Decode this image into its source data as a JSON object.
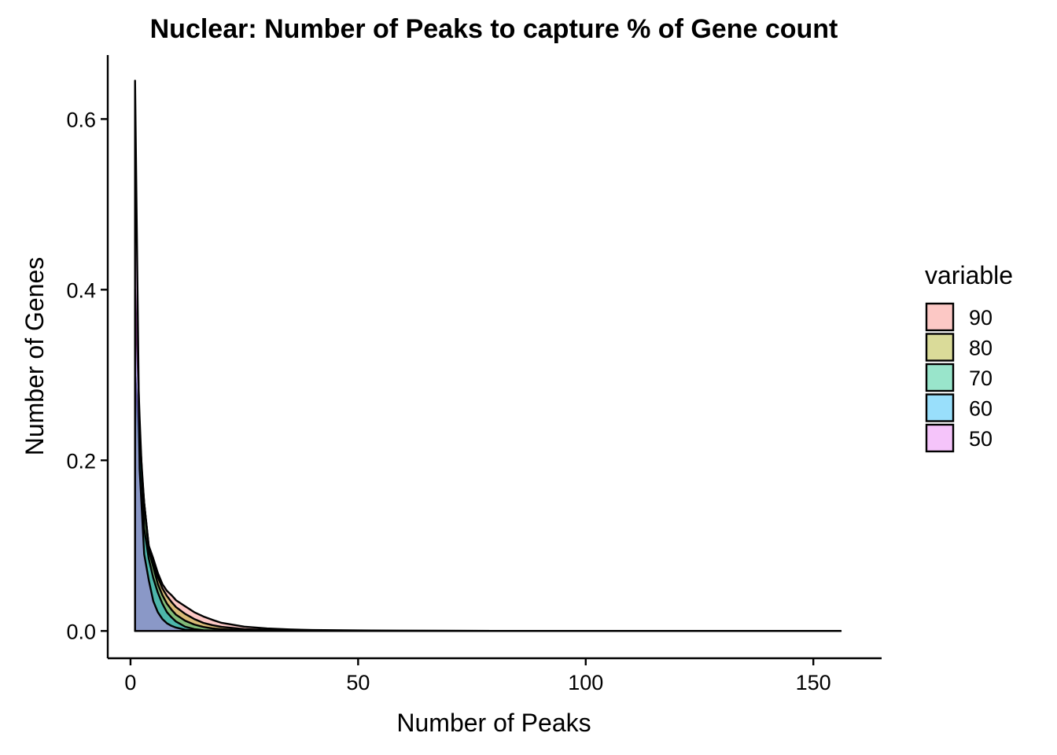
{
  "chart_data": {
    "type": "area",
    "title": "Nuclear: Number of Peaks to capture % of Gene count",
    "xlabel": "Number of Peaks",
    "ylabel": "Number of Genes",
    "xlim": [
      -5,
      165
    ],
    "ylim": [
      -0.032,
      0.675
    ],
    "x_ticks": [
      0,
      50,
      100,
      150
    ],
    "x_tick_labels": [
      "0",
      "50",
      "100",
      "150"
    ],
    "y_ticks": [
      0,
      0.2,
      0.4,
      0.6
    ],
    "y_tick_labels": [
      "0.0",
      "0.2",
      "0.4",
      "0.6"
    ],
    "grid": false,
    "legend": {
      "title": "variable",
      "position": "right",
      "entries": [
        "90",
        "80",
        "70",
        "60",
        "50"
      ]
    },
    "series": [
      {
        "name": "90",
        "color": "#F8766D",
        "points": [
          [
            1,
            0
          ],
          [
            1,
            0.3
          ],
          [
            2,
            0.2
          ],
          [
            3,
            0.15
          ],
          [
            4,
            0.1
          ],
          [
            5,
            0.085
          ],
          [
            6,
            0.068
          ],
          [
            7,
            0.055
          ],
          [
            8,
            0.047
          ],
          [
            9,
            0.042
          ],
          [
            10,
            0.036
          ],
          [
            12,
            0.029
          ],
          [
            14,
            0.022
          ],
          [
            16,
            0.017
          ],
          [
            18,
            0.013
          ],
          [
            20,
            0.0095
          ],
          [
            25,
            0.005
          ],
          [
            30,
            0.003
          ],
          [
            35,
            0.0018
          ],
          [
            40,
            0.0011
          ],
          [
            50,
            0.0006
          ],
          [
            60,
            0.0003
          ],
          [
            80,
            0.0001
          ],
          [
            100,
            5e-05
          ],
          [
            156,
            0
          ],
          [
            156,
            0
          ]
        ]
      },
      {
        "name": "80",
        "color": "#A3A500",
        "points": [
          [
            1,
            0
          ],
          [
            1,
            0.3
          ],
          [
            2,
            0.22
          ],
          [
            3,
            0.15
          ],
          [
            4,
            0.1
          ],
          [
            5,
            0.08
          ],
          [
            6,
            0.063
          ],
          [
            7,
            0.05
          ],
          [
            8,
            0.041
          ],
          [
            9,
            0.034
          ],
          [
            10,
            0.028
          ],
          [
            12,
            0.02
          ],
          [
            14,
            0.014
          ],
          [
            16,
            0.0095
          ],
          [
            18,
            0.0068
          ],
          [
            20,
            0.0048
          ],
          [
            25,
            0.0022
          ],
          [
            30,
            0.0011
          ],
          [
            40,
            0.0003
          ],
          [
            50,
            0.0001
          ],
          [
            156,
            0
          ],
          [
            156,
            0
          ]
        ]
      },
      {
        "name": "70",
        "color": "#00BF7D",
        "points": [
          [
            1,
            0
          ],
          [
            1,
            0.3
          ],
          [
            2,
            0.23
          ],
          [
            3,
            0.15
          ],
          [
            4,
            0.095
          ],
          [
            5,
            0.075
          ],
          [
            6,
            0.055
          ],
          [
            7,
            0.042
          ],
          [
            8,
            0.032
          ],
          [
            9,
            0.025
          ],
          [
            10,
            0.019
          ],
          [
            12,
            0.012
          ],
          [
            14,
            0.0075
          ],
          [
            16,
            0.0047
          ],
          [
            18,
            0.003
          ],
          [
            20,
            0.002
          ],
          [
            25,
            0.0007
          ],
          [
            30,
            0.0002
          ],
          [
            156,
            0
          ],
          [
            156,
            0
          ]
        ]
      },
      {
        "name": "60",
        "color": "#00B0F6",
        "points": [
          [
            1,
            0
          ],
          [
            1,
            0.4
          ],
          [
            2,
            0.25
          ],
          [
            3,
            0.12
          ],
          [
            4,
            0.085
          ],
          [
            5,
            0.062
          ],
          [
            6,
            0.045
          ],
          [
            7,
            0.032
          ],
          [
            8,
            0.022
          ],
          [
            9,
            0.016
          ],
          [
            10,
            0.011
          ],
          [
            12,
            0.005
          ],
          [
            14,
            0.0022
          ],
          [
            16,
            0.0009
          ],
          [
            20,
            0.0002
          ],
          [
            156,
            0
          ],
          [
            156,
            0
          ]
        ]
      },
      {
        "name": "50",
        "color": "#E76BF3",
        "points": [
          [
            1,
            0
          ],
          [
            1,
            0.645
          ],
          [
            2,
            0.19
          ],
          [
            3,
            0.09
          ],
          [
            4,
            0.06
          ],
          [
            5,
            0.035
          ],
          [
            6,
            0.022
          ],
          [
            7,
            0.014
          ],
          [
            8,
            0.009
          ],
          [
            9,
            0.006
          ],
          [
            10,
            0.004
          ],
          [
            12,
            0.0015
          ],
          [
            15,
            0.0004
          ],
          [
            20,
            0.0001
          ],
          [
            156,
            0
          ],
          [
            156,
            0
          ]
        ]
      }
    ]
  }
}
